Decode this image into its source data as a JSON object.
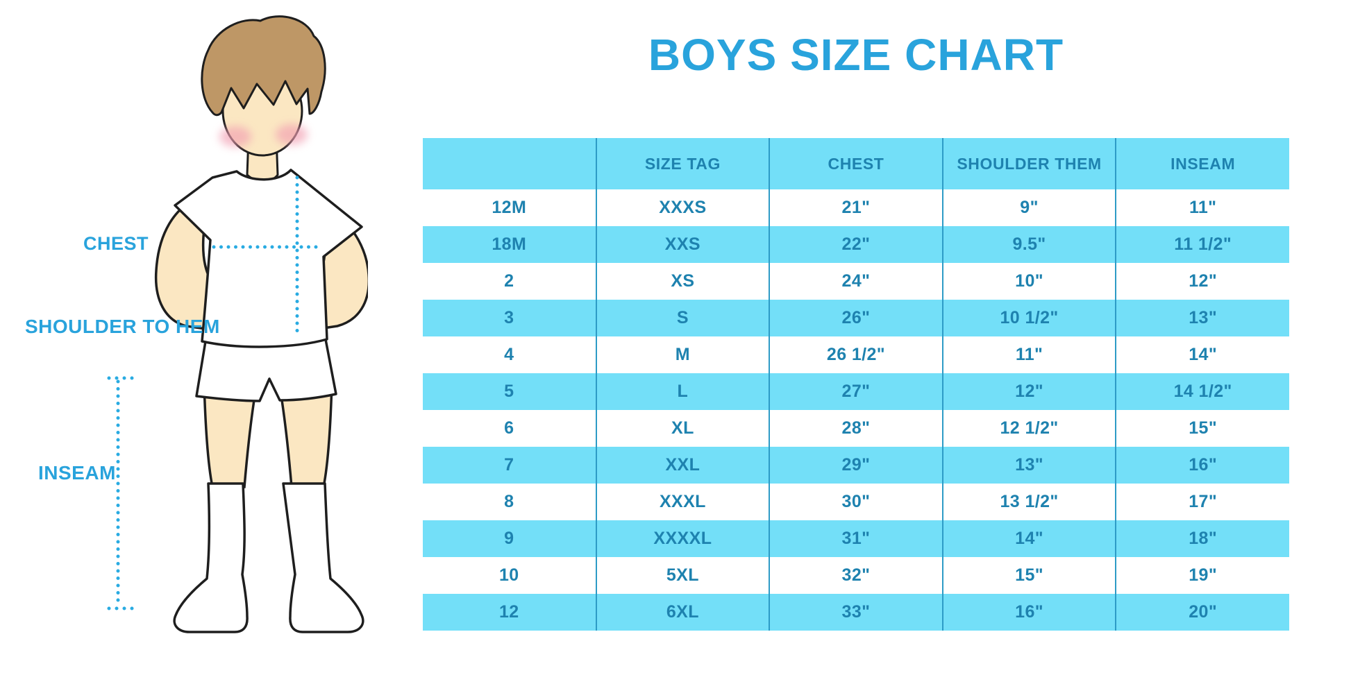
{
  "title": "BOYS SIZE CHART",
  "figure_labels": {
    "chest": "CHEST",
    "shoulder_to_hem": "SHOULDER TO HEM",
    "inseam": "INSEAM"
  },
  "chart_data": {
    "type": "table",
    "title": "BOYS SIZE CHART",
    "columns": [
      "",
      "SIZE TAG",
      "CHEST",
      "SHOULDER THEM",
      "INSEAM"
    ],
    "rows": [
      [
        "12M",
        "XXXS",
        "21\"",
        "9\"",
        "11\""
      ],
      [
        "18M",
        "XXS",
        "22\"",
        "9.5\"",
        "11 1/2\""
      ],
      [
        "2",
        "XS",
        "24\"",
        "10\"",
        "12\""
      ],
      [
        "3",
        "S",
        "26\"",
        "10 1/2\"",
        "13\""
      ],
      [
        "4",
        "M",
        "26 1/2\"",
        "11\"",
        "14\""
      ],
      [
        "5",
        "L",
        "27\"",
        "12\"",
        "14 1/2\""
      ],
      [
        "6",
        "XL",
        "28\"",
        "12 1/2\"",
        "15\""
      ],
      [
        "7",
        "XXL",
        "29\"",
        "13\"",
        "16\""
      ],
      [
        "8",
        "XXXL",
        "30\"",
        "13 1/2\"",
        "17\""
      ],
      [
        "9",
        "XXXXL",
        "31\"",
        "14\"",
        "18\""
      ],
      [
        "10",
        "5XL",
        "32\"",
        "15\"",
        "19\""
      ],
      [
        "12",
        "6XL",
        "33\"",
        "16\"",
        "20\""
      ]
    ],
    "layout": {
      "row_banding": "alternate white / light-blue starting white",
      "column_count": 5,
      "legend": "none",
      "grid": "vertical dividers only"
    }
  },
  "colors": {
    "accent_blue": "#29A3DC",
    "row_band_blue": "#73DFF8",
    "table_text_blue": "#1E82AF",
    "divider_blue": "#2D9BC6",
    "dotted_line_blue": "#29ABE2",
    "skin": "#FBE7C2",
    "hair": "#BE9766",
    "blush": "#F29FB2",
    "outline": "#1E1E1E"
  }
}
